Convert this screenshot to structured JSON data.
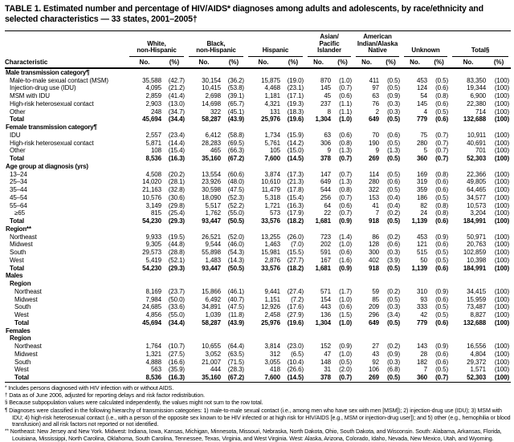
{
  "title": "TABLE 1. Estimated number and percentage of HIV/AIDS* diagnoses among adults and adolescents, by race/ethnicity and selected characteristics — 33 states, 2001–2005†",
  "header": {
    "characteristic": "Characteristic",
    "no": "No.",
    "pct": "(%)",
    "groups": [
      {
        "name": "white-non-hispanic",
        "lines": [
          "White,",
          "non-Hispanic"
        ]
      },
      {
        "name": "black-non-hispanic",
        "lines": [
          "Black,",
          "non-Hispanic"
        ]
      },
      {
        "name": "hispanic",
        "lines": [
          "Hispanic"
        ]
      },
      {
        "name": "asian-pacific-islander",
        "lines": [
          "Asian/",
          "Pacific",
          "Islander"
        ]
      },
      {
        "name": "american-indian-alaska-native",
        "lines": [
          "American",
          "Indian/Alaska",
          "Native"
        ]
      },
      {
        "name": "unknown",
        "lines": [
          "Unknown"
        ]
      },
      {
        "name": "total",
        "lines": [
          "Total§"
        ]
      }
    ]
  },
  "rows": [
    {
      "label": "Male transmission category¶",
      "type": "section"
    },
    {
      "label": "Male-to-male sexual contact (MSM)",
      "indent": 1,
      "values": [
        "35,588",
        "(42.7)",
        "30,154",
        "(36.2)",
        "15,875",
        "(19.0)",
        "870",
        "(1.0)",
        "411",
        "(0.5)",
        "453",
        "(0.5)",
        "83,350",
        "(100)"
      ]
    },
    {
      "label": "Injection-drug use (IDU)",
      "indent": 1,
      "values": [
        "4,095",
        "(21.2)",
        "10,415",
        "(53.8)",
        "4,468",
        "(23.1)",
        "145",
        "(0.7)",
        "97",
        "(0.5)",
        "124",
        "(0.6)",
        "19,344",
        "(100)"
      ]
    },
    {
      "label": "MSM with IDU",
      "indent": 1,
      "values": [
        "2,859",
        "(41.4)",
        "2,698",
        "(39.1)",
        "1,181",
        "(17.1)",
        "45",
        "(0.6)",
        "63",
        "(0.9)",
        "54",
        "(0.8)",
        "6,900",
        "(100)"
      ]
    },
    {
      "label": "High-risk heterosexual contact",
      "indent": 1,
      "values": [
        "2,903",
        "(13.0)",
        "14,698",
        "(65.7)",
        "4,321",
        "(19.3)",
        "237",
        "(1.1)",
        "76",
        "(0.3)",
        "145",
        "(0.6)",
        "22,380",
        "(100)"
      ]
    },
    {
      "label": "Other",
      "indent": 1,
      "values": [
        "248",
        "(34.7)",
        "322",
        "(45.1)",
        "131",
        "(18.3)",
        "8",
        "(1.1)",
        "2",
        "(0.3)",
        "4",
        "(0.5)",
        "714",
        "(100)"
      ]
    },
    {
      "label": "Total",
      "indent": 1,
      "bold": true,
      "values": [
        "45,694",
        "(34.4)",
        "58,287",
        "(43.9)",
        "25,976",
        "(19.6)",
        "1,304",
        "(1.0)",
        "649",
        "(0.5)",
        "779",
        "(0.6)",
        "132,688",
        "(100)"
      ]
    },
    {
      "label": "Female transmission category¶",
      "type": "section"
    },
    {
      "label": "IDU",
      "indent": 1,
      "values": [
        "2,557",
        "(23.4)",
        "6,412",
        "(58.8)",
        "1,734",
        "(15.9)",
        "63",
        "(0.6)",
        "70",
        "(0.6)",
        "75",
        "(0.7)",
        "10,911",
        "(100)"
      ]
    },
    {
      "label": "High-risk heterosexual contact",
      "indent": 1,
      "values": [
        "5,871",
        "(14.4)",
        "28,283",
        "(69.5)",
        "5,761",
        "(14.2)",
        "306",
        "(0.8)",
        "190",
        "(0.5)",
        "280",
        "(0.7)",
        "40,691",
        "(100)"
      ]
    },
    {
      "label": "Other",
      "indent": 1,
      "values": [
        "108",
        "(15.4)",
        "465",
        "(66.3)",
        "105",
        "(15.0)",
        "9",
        "(1.3)",
        "9",
        "(1.3)",
        "5",
        "(0.7)",
        "701",
        "(100)"
      ]
    },
    {
      "label": "Total",
      "indent": 1,
      "bold": true,
      "values": [
        "8,536",
        "(16.3)",
        "35,160",
        "(67.2)",
        "7,600",
        "(14.5)",
        "378",
        "(0.7)",
        "269",
        "(0.5)",
        "360",
        "(0.7)",
        "52,303",
        "(100)"
      ]
    },
    {
      "label": "Age group at diagnosis (yrs)",
      "type": "section"
    },
    {
      "label": "13–24",
      "indent": 1,
      "values": [
        "4,508",
        "(20.2)",
        "13,554",
        "(60.6)",
        "3,874",
        "(17.3)",
        "147",
        "(0.7)",
        "114",
        "(0.5)",
        "169",
        "(0.8)",
        "22,366",
        "(100)"
      ]
    },
    {
      "label": "25–34",
      "indent": 1,
      "values": [
        "14,020",
        "(28.1)",
        "23,926",
        "(48.0)",
        "10,610",
        "(21.3)",
        "649",
        "(1.3)",
        "280",
        "(0.6)",
        "319",
        "(0.6)",
        "49,805",
        "(100)"
      ]
    },
    {
      "label": "35–44",
      "indent": 1,
      "values": [
        "21,163",
        "(32.8)",
        "30,598",
        "(47.5)",
        "11,479",
        "(17.8)",
        "544",
        "(0.8)",
        "322",
        "(0.5)",
        "359",
        "(0.6)",
        "64,465",
        "(100)"
      ]
    },
    {
      "label": "45–54",
      "indent": 1,
      "values": [
        "10,576",
        "(30.6)",
        "18,090",
        "(52.3)",
        "5,318",
        "(15.4)",
        "256",
        "(0.7)",
        "153",
        "(0.4)",
        "186",
        "(0.5)",
        "34,577",
        "(100)"
      ]
    },
    {
      "label": "55–64",
      "indent": 1,
      "values": [
        "3,149",
        "(29.8)",
        "5,517",
        "(52.2)",
        "1,721",
        "(16.3)",
        "64",
        "(0.6)",
        "41",
        "(0.4)",
        "82",
        "(0.8)",
        "10,573",
        "(100)"
      ]
    },
    {
      "label": "≥65",
      "indent": 2,
      "values": [
        "815",
        "(25.4)",
        "1,762",
        "(55.0)",
        "573",
        "(17.9)",
        "22",
        "(0.7)",
        "7",
        "(0.2)",
        "24",
        "(0.8)",
        "3,204",
        "(100)"
      ]
    },
    {
      "label": "Total",
      "indent": 1,
      "bold": true,
      "values": [
        "54,230",
        "(29.3)",
        "93,447",
        "(50.5)",
        "33,576",
        "(18.2)",
        "1,681",
        "(0.9)",
        "918",
        "(0.5)",
        "1,139",
        "(0.6)",
        "184,991",
        "(100)"
      ]
    },
    {
      "label": "Region**",
      "type": "section"
    },
    {
      "label": "Northeast",
      "indent": 1,
      "values": [
        "9,933",
        "(19.5)",
        "26,521",
        "(52.0)",
        "13,255",
        "(26.0)",
        "723",
        "(1.4)",
        "86",
        "(0.2)",
        "453",
        "(0.9)",
        "50,971",
        "(100)"
      ]
    },
    {
      "label": "Midwest",
      "indent": 1,
      "values": [
        "9,305",
        "(44.8)",
        "9,544",
        "(46.0)",
        "1,463",
        "(7.0)",
        "202",
        "(1.0)",
        "128",
        "(0.6)",
        "121",
        "(0.6)",
        "20,763",
        "(100)"
      ]
    },
    {
      "label": "South",
      "indent": 1,
      "values": [
        "29,573",
        "(28.8)",
        "55,898",
        "(54.3)",
        "15,981",
        "(15.5)",
        "591",
        "(0.6)",
        "300",
        "(0.3)",
        "515",
        "(0.5)",
        "102,859",
        "(100)"
      ]
    },
    {
      "label": "West",
      "indent": 1,
      "values": [
        "5,419",
        "(52.1)",
        "1,483",
        "(14.3)",
        "2,876",
        "(27.7)",
        "167",
        "(1.6)",
        "402",
        "(3.9)",
        "50",
        "(0.5)",
        "10,398",
        "(100)"
      ]
    },
    {
      "label": "Total",
      "indent": 1,
      "bold": true,
      "values": [
        "54,230",
        "(29.3)",
        "93,447",
        "(50.5)",
        "33,576",
        "(18.2)",
        "1,681",
        "(0.9)",
        "918",
        "(0.5)",
        "1,139",
        "(0.6)",
        "184,991",
        "(100)"
      ]
    },
    {
      "label": "Males",
      "type": "section"
    },
    {
      "label": "Region",
      "type": "subsection",
      "indent": 1
    },
    {
      "label": "Northeast",
      "indent": 2,
      "values": [
        "8,169",
        "(23.7)",
        "15,866",
        "(46.1)",
        "9,441",
        "(27.4)",
        "571",
        "(1.7)",
        "59",
        "(0.2)",
        "310",
        "(0.9)",
        "34,415",
        "(100)"
      ]
    },
    {
      "label": "Midwest",
      "indent": 2,
      "values": [
        "7,984",
        "(50.0)",
        "6,492",
        "(40.7)",
        "1,151",
        "(7.2)",
        "154",
        "(1.0)",
        "85",
        "(0.5)",
        "93",
        "(0.6)",
        "15,959",
        "(100)"
      ]
    },
    {
      "label": "South",
      "indent": 2,
      "values": [
        "24,685",
        "(33.6)",
        "34,891",
        "(47.5)",
        "12,926",
        "(17.6)",
        "443",
        "(0.6)",
        "209",
        "(0.3)",
        "333",
        "(0.5)",
        "73,487",
        "(100)"
      ]
    },
    {
      "label": "West",
      "indent": 2,
      "values": [
        "4,856",
        "(55.0)",
        "1,039",
        "(11.8)",
        "2,458",
        "(27.9)",
        "136",
        "(1.5)",
        "296",
        "(3.4)",
        "42",
        "(0.5)",
        "8,827",
        "(100)"
      ]
    },
    {
      "label": "Total",
      "indent": 2,
      "bold": true,
      "values": [
        "45,694",
        "(34.4)",
        "58,287",
        "(43.9)",
        "25,976",
        "(19.6)",
        "1,304",
        "(1.0)",
        "649",
        "(0.5)",
        "779",
        "(0.6)",
        "132,688",
        "(100)"
      ]
    },
    {
      "label": "Females",
      "type": "section"
    },
    {
      "label": "Region",
      "type": "subsection",
      "indent": 1
    },
    {
      "label": "Northeast",
      "indent": 2,
      "values": [
        "1,764",
        "(10.7)",
        "10,655",
        "(64.4)",
        "3,814",
        "(23.0)",
        "152",
        "(0.9)",
        "27",
        "(0.2)",
        "143",
        "(0.9)",
        "16,556",
        "(100)"
      ]
    },
    {
      "label": "Midwest",
      "indent": 2,
      "values": [
        "1,321",
        "(27.5)",
        "3,052",
        "(63.5)",
        "312",
        "(6.5)",
        "47",
        "(1.0)",
        "43",
        "(0.9)",
        "28",
        "(0.6)",
        "4,804",
        "(100)"
      ]
    },
    {
      "label": "South",
      "indent": 2,
      "values": [
        "4,888",
        "(16.6)",
        "21,007",
        "(71.5)",
        "3,055",
        "(10.4)",
        "148",
        "(0.5)",
        "92",
        "(0.3)",
        "182",
        "(0.6)",
        "29,372",
        "(100)"
      ]
    },
    {
      "label": "West",
      "indent": 2,
      "values": [
        "563",
        "(35.9)",
        "444",
        "(28.3)",
        "418",
        "(26.6)",
        "31",
        "(2.0)",
        "106",
        "(6.8)",
        "7",
        "(0.5)",
        "1,571",
        "(100)"
      ]
    },
    {
      "label": "Total",
      "indent": 2,
      "bold": true,
      "values": [
        "8,536",
        "(16.3)",
        "35,160",
        "(67.2)",
        "7,600",
        "(14.5)",
        "378",
        "(0.7)",
        "269",
        "(0.5)",
        "360",
        "(0.7)",
        "52,303",
        "(100)"
      ]
    }
  ],
  "footnotes": [
    {
      "symbol": "*",
      "text": "Includes persons diagnosed with HIV infection with or without AIDS."
    },
    {
      "symbol": "†",
      "text": "Data as of June 2006, adjusted for reporting delays and risk factor redistribution."
    },
    {
      "symbol": "§",
      "text": "Because subpopulation values were calculated independently, the values might not sum to the row total."
    },
    {
      "symbol": "¶",
      "text": "Diagnoses were classified in the following hierarchy of transmission categories: 1) male-to-male sexual contact (i.e., among men who have sex with men [MSM]); 2) injection-drug use (IDU); 3) MSM with IDU; 4) high-risk heterosexual contact (i.e., with a person of the opposite sex known to be HIV infected or at high risk for HIV/AIDS [e.g., MSM or injection-drug user]); and 5) other (e.g., hemophilia or blood transfusion) and all risk factors not reported or not identified."
    },
    {
      "symbol": "**",
      "text": "Northeast: New Jersey and New York. Midwest: Indiana, Iowa, Kansas, Michigan, Minnesota, Missouri, Nebraska, North Dakota, Ohio, South Dakota, and Wisconsin. South: Alabama, Arkansas, Florida, Louisiana, Mississippi, North Carolina, Oklahoma, South Carolina, Tennessee, Texas, Virginia, and West Virginia. West: Alaska, Arizona, Colorado, Idaho, Nevada, New Mexico, Utah, and Wyoming."
    }
  ]
}
